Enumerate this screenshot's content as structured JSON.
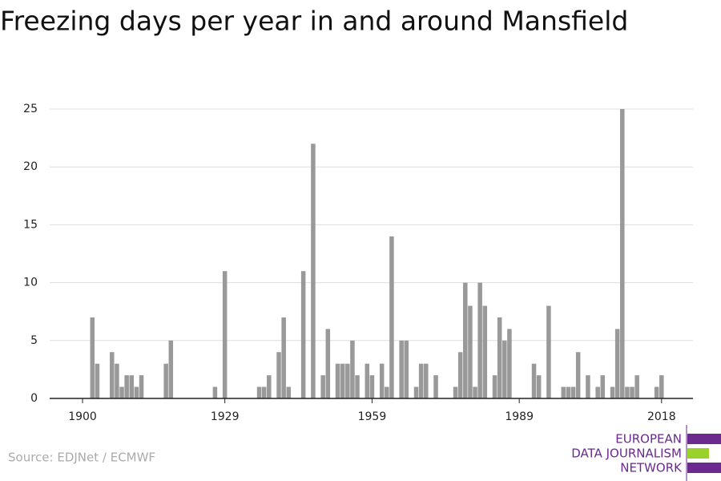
{
  "chart_data": {
    "type": "bar",
    "title": "Freezing days per year in and around Mansfield",
    "source": "Source: EDJNet / ECMWF",
    "logo": [
      "EUROPEAN",
      "DATA JOURNALISM",
      "NETWORK"
    ],
    "color": "#999999",
    "x": [
      1902,
      1903,
      1906,
      1907,
      1908,
      1909,
      1910,
      1911,
      1912,
      1917,
      1918,
      1927,
      1929,
      1936,
      1937,
      1938,
      1940,
      1941,
      1942,
      1945,
      1947,
      1949,
      1950,
      1952,
      1953,
      1954,
      1955,
      1956,
      1958,
      1959,
      1961,
      1962,
      1963,
      1965,
      1966,
      1968,
      1969,
      1970,
      1972,
      1976,
      1977,
      1978,
      1979,
      1980,
      1981,
      1982,
      1984,
      1985,
      1986,
      1987,
      1992,
      1993,
      1995,
      1998,
      1999,
      2000,
      2001,
      2003,
      2005,
      2006,
      2008,
      2009,
      2010,
      2011,
      2012,
      2013,
      2017,
      2018
    ],
    "values": [
      7,
      3,
      4,
      3,
      1,
      2,
      2,
      1,
      2,
      3,
      5,
      1,
      11,
      1,
      1,
      2,
      4,
      7,
      1,
      11,
      22,
      2,
      6,
      3,
      3,
      3,
      5,
      2,
      3,
      2,
      3,
      1,
      14,
      5,
      5,
      1,
      3,
      3,
      2,
      1,
      4,
      10,
      8,
      1,
      10,
      8,
      2,
      7,
      5,
      6,
      3,
      2,
      8,
      1,
      1,
      1,
      4,
      2,
      1,
      2,
      1,
      6,
      25,
      1,
      1,
      2,
      1,
      2
    ],
    "xlim": [
      1893.3,
      2024.4
    ],
    "xticks": [
      1900,
      1929,
      1959,
      1989,
      2018
    ],
    "ylim": [
      0,
      25
    ],
    "yticks": [
      0,
      5,
      10,
      15,
      20,
      25
    ],
    "grid": true
  }
}
